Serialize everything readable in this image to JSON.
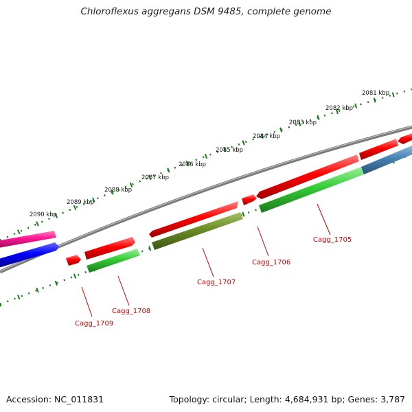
{
  "title": "Chloroflexus aggregans DSM 9485, complete genome",
  "footer": {
    "accession": "Accession: NC_011831",
    "topology": "Topology: circular; Length: 4,684,931 bp; Genes: 3,787"
  },
  "ruler": {
    "unit": "kbp",
    "labels": [
      "2081 kbp",
      "2082 kbp",
      "2083 kbp",
      "2084 kbp",
      "2085 kbp",
      "2086 kbp",
      "2087 kbp",
      "2088 kbp",
      "2089 kbp",
      "2090 kbp"
    ]
  },
  "genes": [
    {
      "label": "Cagg_1705",
      "color": "#33cc33"
    },
    {
      "label": "Cagg_1706",
      "color": "#ff0000"
    },
    {
      "label": "Cagg_1707",
      "color": "#6b8e23"
    },
    {
      "label": "Cagg_1708",
      "color": "#33cc33"
    },
    {
      "label": "Cagg_1709",
      "color": "#ff0000"
    }
  ],
  "colors": {
    "forward_red": "#ff0000",
    "reverse_green": "#33cc33",
    "olive": "#6b8e23",
    "steelblue": "#4682b4",
    "magenta": "#ff1493",
    "blue": "#0000ff",
    "backbone": "#7a7a7a",
    "ticks": "#1a7a1a",
    "label": "#cc0000"
  }
}
